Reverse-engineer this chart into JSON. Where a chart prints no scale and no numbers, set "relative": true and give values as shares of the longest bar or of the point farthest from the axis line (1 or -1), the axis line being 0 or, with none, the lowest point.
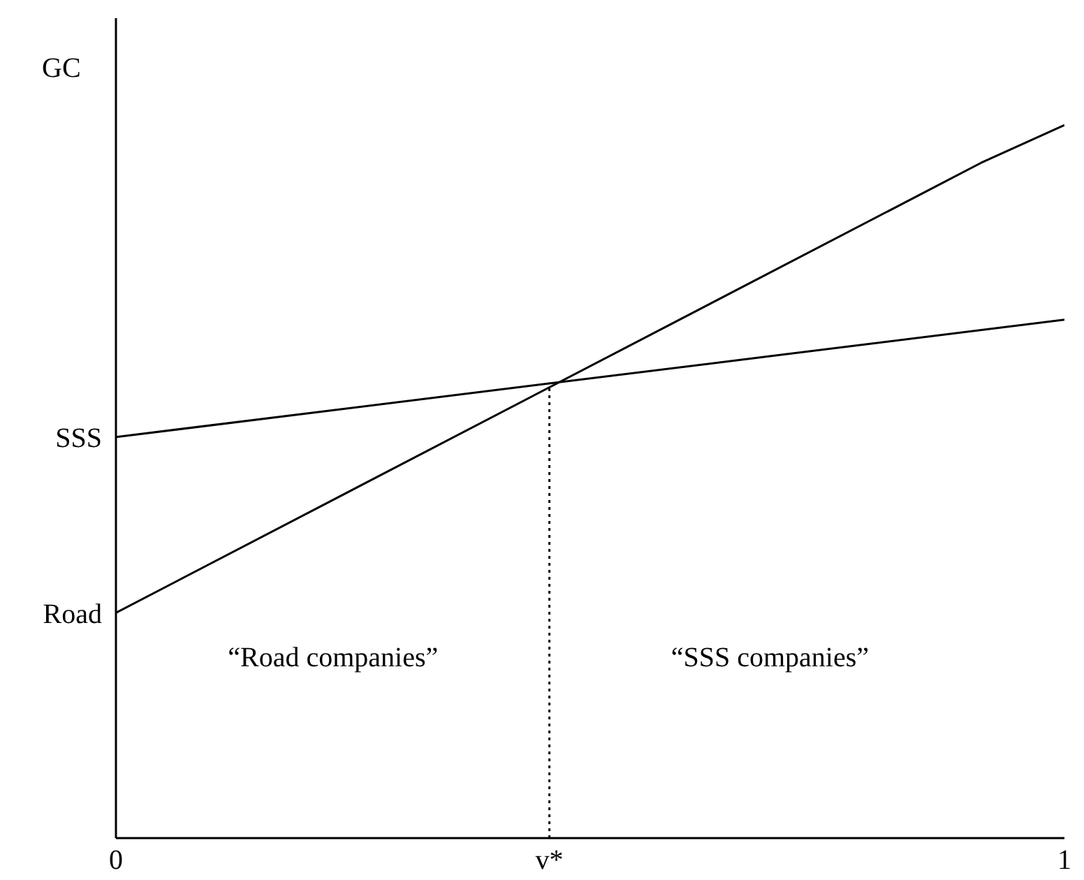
{
  "chart_data": {
    "type": "line",
    "relative": true,
    "ylabel": "GC",
    "xlim": [
      0,
      1
    ],
    "xticks": [
      0,
      {
        "value": 0.457,
        "label": "v*"
      },
      1
    ],
    "grid": false,
    "legend": false,
    "marker": "none",
    "series": [
      {
        "color": "#000000",
        "x": [
          0,
          0.912,
          1
        ],
        "values": [
          0.316,
          0.947,
          1
        ]
      },
      {
        "color": "#000000",
        "x": [
          0,
          1
        ],
        "values": [
          0.5625,
          0.727
        ]
      },
      {
        "color": "#000000",
        "x": [
          0.457,
          0.457
        ],
        "values": [
          0,
          0.639
        ],
        "line_style": "dotted"
      }
    ],
    "annotations": [
      {
        "text": "SSS",
        "x": 0,
        "y": 0.5625
      },
      {
        "text": "Road",
        "x": 0,
        "y": 0.316
      },
      "“Road companies”",
      "“SSS companies”"
    ]
  }
}
